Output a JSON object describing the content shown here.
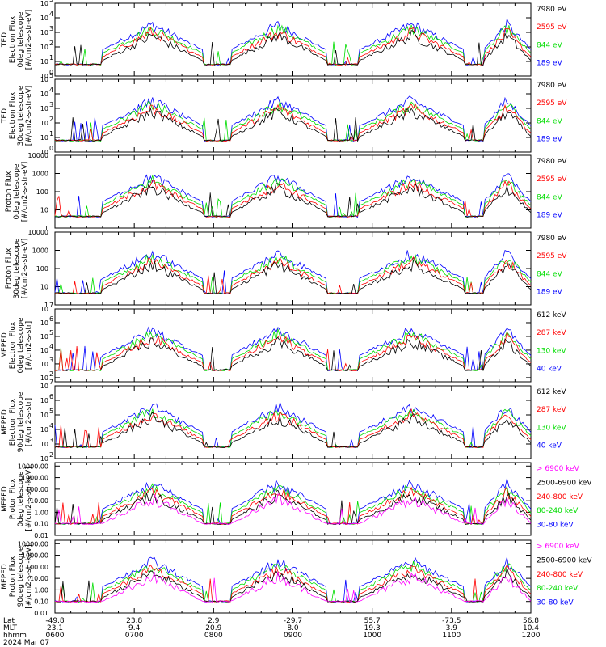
{
  "panels": [
    {
      "id": "p1",
      "ylabel": [
        "TED",
        "Electron Flux",
        "0deg telescope",
        "[#/cm2-s-str-eV]"
      ],
      "yticks": [
        {
          "e": 0,
          "t": "10"
        },
        {
          "e": 1,
          "t": "10"
        },
        {
          "e": 2,
          "t": "10"
        },
        {
          "e": 3,
          "t": "10"
        },
        {
          "e": 4,
          "t": "10"
        },
        {
          "e": 5,
          "t": "10"
        }
      ],
      "tickexp": [
        "0",
        "1",
        "2",
        "3",
        "4",
        "5"
      ],
      "ymin": 0,
      "ymax": 5,
      "legend": [
        {
          "t": "7980 eV",
          "c": "#000000"
        },
        {
          "t": "2595 eV",
          "c": "#ff0000"
        },
        {
          "t": "844 eV",
          "c": "#00dd00"
        },
        {
          "t": "189 eV",
          "c": "#0000ff"
        }
      ]
    },
    {
      "id": "p2",
      "ylabel": [
        "TED",
        "Electron Flux",
        "30deg telescope",
        "[#/cm2-s-str-eV]"
      ],
      "yticks": [
        {
          "e": 0,
          "t": "10"
        },
        {
          "e": 1,
          "t": "10"
        },
        {
          "e": 2,
          "t": "10"
        },
        {
          "e": 3,
          "t": "10"
        },
        {
          "e": 4,
          "t": "10"
        },
        {
          "e": 5,
          "t": "10"
        }
      ],
      "tickexp": [
        "0",
        "1",
        "2",
        "3",
        "4",
        "5"
      ],
      "ymin": 0,
      "ymax": 5,
      "legend": [
        {
          "t": "7980 eV",
          "c": "#000000"
        },
        {
          "t": "2595 eV",
          "c": "#ff0000"
        },
        {
          "t": "844 eV",
          "c": "#00dd00"
        },
        {
          "t": "189 eV",
          "c": "#0000ff"
        }
      ]
    },
    {
      "id": "p3",
      "ylabel": [
        "Proton Flux",
        "0deg telescope",
        "[#/cm2-s-str-eV]"
      ],
      "yticks": [
        {
          "e": 0,
          "t": "1"
        },
        {
          "e": 1,
          "t": "10"
        },
        {
          "e": 2,
          "t": "100"
        },
        {
          "e": 3,
          "t": "1000"
        },
        {
          "e": 4,
          "t": "10000"
        }
      ],
      "tickexp": [],
      "ymin": 0,
      "ymax": 4,
      "legend": [
        {
          "t": "7980 eV",
          "c": "#000000"
        },
        {
          "t": "2595 eV",
          "c": "#ff0000"
        },
        {
          "t": "844 eV",
          "c": "#00dd00"
        },
        {
          "t": "189 eV",
          "c": "#0000ff"
        }
      ]
    },
    {
      "id": "p4",
      "ylabel": [
        "Proton Flux",
        "30deg telescope",
        "[#/cm2-s-str-eV]"
      ],
      "yticks": [
        {
          "e": 0,
          "t": "1"
        },
        {
          "e": 1,
          "t": "10"
        },
        {
          "e": 2,
          "t": "100"
        },
        {
          "e": 3,
          "t": "1000"
        },
        {
          "e": 4,
          "t": "10000"
        }
      ],
      "tickexp": [],
      "ymin": 0,
      "ymax": 4,
      "legend": [
        {
          "t": "7980 eV",
          "c": "#000000"
        },
        {
          "t": "2595 eV",
          "c": "#ff0000"
        },
        {
          "t": "844 eV",
          "c": "#00dd00"
        },
        {
          "t": "189 eV",
          "c": "#0000ff"
        }
      ]
    },
    {
      "id": "p5",
      "ylabel": [
        "MEPED",
        "Electron Flux",
        "0deg telescope",
        "[#/cm2-s-str]"
      ],
      "yticks": [
        {
          "e": 1,
          "t": "10"
        },
        {
          "e": 2,
          "t": "10"
        },
        {
          "e": 3,
          "t": "10"
        },
        {
          "e": 4,
          "t": "10"
        },
        {
          "e": 5,
          "t": "10"
        },
        {
          "e": 6,
          "t": "10"
        },
        {
          "e": 7,
          "t": "10"
        }
      ],
      "tickexp": [
        "1",
        "2",
        "3",
        "4",
        "5",
        "6",
        "7"
      ],
      "ymin": 1.7,
      "ymax": 7,
      "legend": [
        {
          "t": "612 keV",
          "c": "#000000"
        },
        {
          "t": "287 keV",
          "c": "#ff0000"
        },
        {
          "t": "130 keV",
          "c": "#00dd00"
        },
        {
          "t": "40 keV",
          "c": "#0000ff"
        }
      ]
    },
    {
      "id": "p6",
      "ylabel": [
        "MEPED",
        "Electron Flux",
        "90deg telescope",
        "[#/cm2-s-str]"
      ],
      "yticks": [
        {
          "e": 2,
          "t": "10"
        },
        {
          "e": 3,
          "t": "10"
        },
        {
          "e": 4,
          "t": "10"
        },
        {
          "e": 5,
          "t": "10"
        },
        {
          "e": 6,
          "t": "10"
        },
        {
          "e": 7,
          "t": "10"
        }
      ],
      "tickexp": [
        "2",
        "3",
        "4",
        "5",
        "6",
        "7"
      ],
      "ymin": 2,
      "ymax": 7,
      "legend": [
        {
          "t": "612 keV",
          "c": "#000000"
        },
        {
          "t": "287 keV",
          "c": "#ff0000"
        },
        {
          "t": "130 keV",
          "c": "#00dd00"
        },
        {
          "t": "40 keV",
          "c": "#0000ff"
        }
      ]
    },
    {
      "id": "p7",
      "ylabel": [
        "MEPED",
        "Proton Flux",
        "0deg telescope",
        "[#/cm2-s-str-keV]"
      ],
      "yticks": [
        {
          "e": -2,
          "t": "0.01"
        },
        {
          "e": -1,
          "t": "0.10"
        },
        {
          "e": 0,
          "t": "1.00"
        },
        {
          "e": 1,
          "t": "10.00"
        },
        {
          "e": 2,
          "t": "100.00"
        },
        {
          "e": 3,
          "t": "1000.00"
        },
        {
          "e": 4,
          "t": "10000.00"
        }
      ],
      "tickexp": [],
      "ymin": -2,
      "ymax": 4.3,
      "legend": [
        {
          "t": "> 6900 keV",
          "c": "#ff00ff"
        },
        {
          "t": "2500-6900 keV",
          "c": "#000000"
        },
        {
          "t": "240-800 keV",
          "c": "#ff0000"
        },
        {
          "t": "80-240 keV",
          "c": "#00dd00"
        },
        {
          "t": "30-80 keV",
          "c": "#0000ff"
        }
      ]
    },
    {
      "id": "p8",
      "ylabel": [
        "MEPED",
        "Proton Flux",
        "90deg telescope",
        "[#/cm2-s-str-keV]"
      ],
      "yticks": [
        {
          "e": -2,
          "t": "0.01"
        },
        {
          "e": -1,
          "t": "0.10"
        },
        {
          "e": 0,
          "t": "1.00"
        },
        {
          "e": 1,
          "t": "10.00"
        },
        {
          "e": 2,
          "t": "100.00"
        },
        {
          "e": 3,
          "t": "1000.00"
        },
        {
          "e": 4,
          "t": "10000.00"
        }
      ],
      "tickexp": [],
      "ymin": -2,
      "ymax": 4.3,
      "legend": [
        {
          "t": "> 6900 keV",
          "c": "#ff00ff"
        },
        {
          "t": "2500-6900 keV",
          "c": "#000000"
        },
        {
          "t": "240-800 keV",
          "c": "#ff0000"
        },
        {
          "t": "80-240 keV",
          "c": "#00dd00"
        },
        {
          "t": "30-80 keV",
          "c": "#0000ff"
        }
      ]
    }
  ],
  "xaxis": {
    "row_labels": [
      "Lat",
      "MLT",
      "hhmm",
      "2024 Mar 07"
    ],
    "ticks": [
      {
        "lat": "-49.8",
        "mlt": "23.1",
        "hhmm": "0600"
      },
      {
        "lat": "23.8",
        "mlt": "9.4",
        "hhmm": "0700"
      },
      {
        "lat": "2.9",
        "mlt": "20.9",
        "hhmm": "0800"
      },
      {
        "lat": "-29.7",
        "mlt": "8.0",
        "hhmm": "0900"
      },
      {
        "lat": "55.7",
        "mlt": "19.3",
        "hhmm": "1000"
      },
      {
        "lat": "-73.5",
        "mlt": "3.9",
        "hhmm": "1100"
      },
      {
        "lat": "56.8",
        "mlt": "10.4",
        "hhmm": "1200"
      }
    ]
  },
  "chart_data": {
    "type": "line",
    "x_range_hhmm": [
      "0600",
      "1200"
    ],
    "date": "2024 Mar 07",
    "y_scale": "log",
    "panels": [
      {
        "panel": "TED Electron Flux 0deg telescope",
        "series": [
          "7980 eV",
          "2595 eV",
          "844 eV",
          "189 eV"
        ]
      },
      {
        "panel": "TED Electron Flux 30deg telescope",
        "series": [
          "7980 eV",
          "2595 eV",
          "844 eV",
          "189 eV"
        ]
      },
      {
        "panel": "Proton Flux 0deg telescope",
        "series": [
          "7980 eV",
          "2595 eV",
          "844 eV",
          "189 eV"
        ]
      },
      {
        "panel": "Proton Flux 30deg telescope",
        "series": [
          "7980 eV",
          "2595 eV",
          "844 eV",
          "189 eV"
        ]
      },
      {
        "panel": "MEPED Electron Flux 0deg telescope",
        "series": [
          "612 keV",
          "287 keV",
          "130 keV",
          "40 keV"
        ]
      },
      {
        "panel": "MEPED Electron Flux 90deg telescope",
        "series": [
          "612 keV",
          "287 keV",
          "130 keV",
          "40 keV"
        ]
      },
      {
        "panel": "MEPED Proton Flux 0deg telescope",
        "series": [
          "> 6900 keV",
          "2500-6900 keV",
          "240-800 keV",
          "80-240 keV",
          "30-80 keV"
        ]
      },
      {
        "panel": "MEPED Proton Flux 90deg telescope",
        "series": [
          "> 6900 keV",
          "2500-6900 keV",
          "240-800 keV",
          "80-240 keV",
          "30-80 keV"
        ]
      }
    ]
  }
}
